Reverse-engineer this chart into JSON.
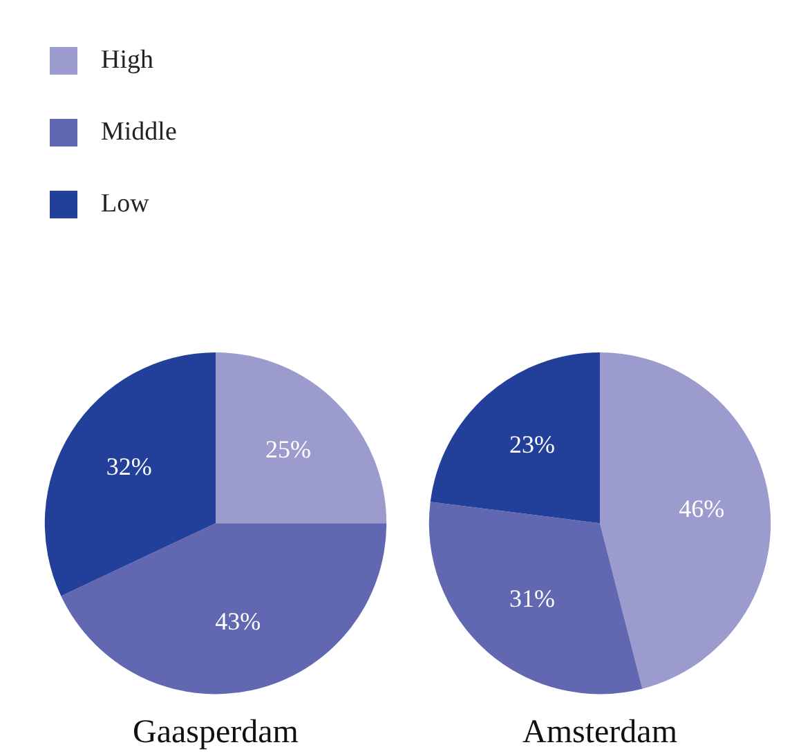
{
  "chart_data": [
    {
      "type": "pie",
      "title": "Gaasperdam",
      "categories": [
        "High",
        "Middle",
        "Low"
      ],
      "values": [
        25,
        43,
        32
      ],
      "value_labels": [
        "25%",
        "43%",
        "32%"
      ],
      "colors": [
        "#9b9bcd",
        "#6167b1",
        "#223f9a"
      ],
      "legend": "top left"
    },
    {
      "type": "pie",
      "title": "Amsterdam",
      "categories": [
        null,
        null,
        null
      ],
      "values": [
        46,
        31,
        23
      ],
      "value_labels": [
        "46%",
        "31%",
        "23%"
      ],
      "colors": [
        "#9b9bcd",
        "#6167b1",
        "#223f9a"
      ]
    }
  ]
}
